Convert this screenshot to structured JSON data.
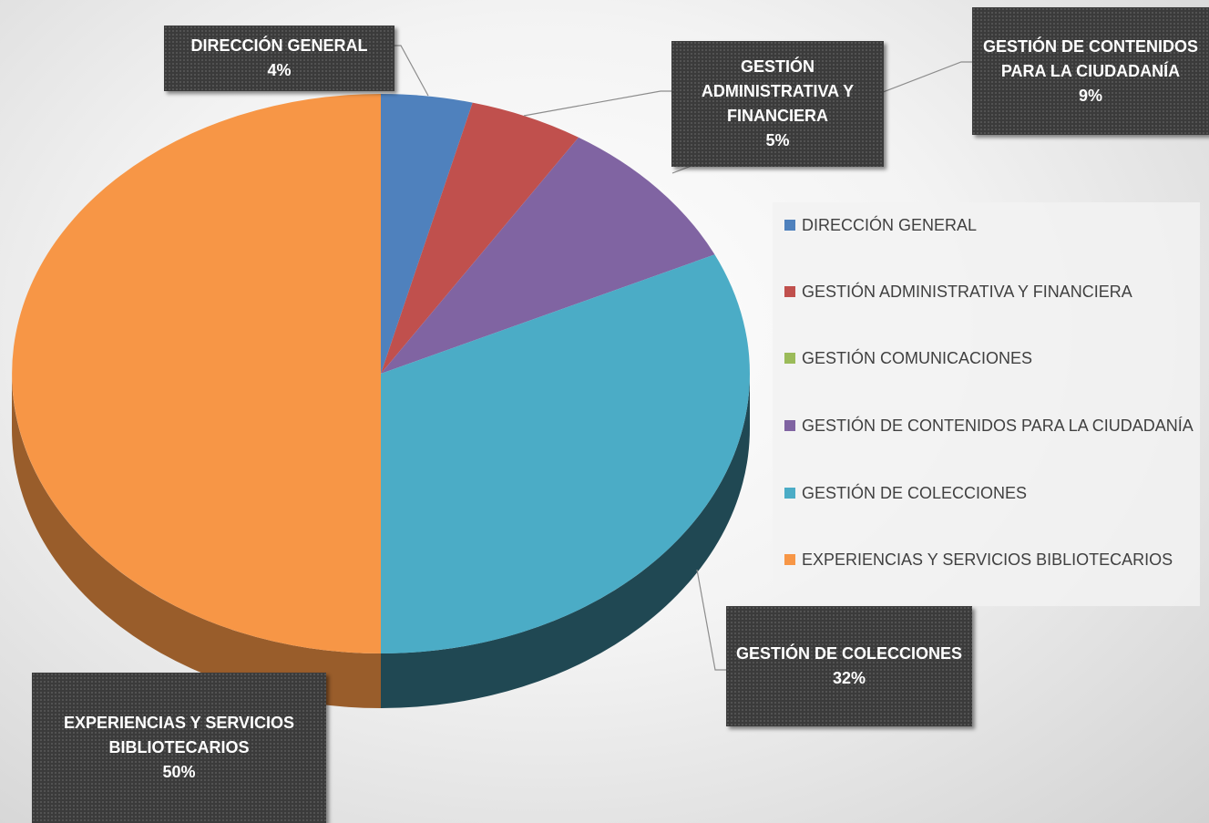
{
  "chart_data": {
    "type": "pie",
    "categories": [
      "DIRECCIÓN GENERAL",
      "GESTIÓN ADMINISTRATIVA Y FINANCIERA",
      "GESTIÓN COMUNICACIONES",
      "GESTIÓN DE CONTENIDOS PARA LA CIUDADANÍA",
      "GESTIÓN DE COLECCIONES",
      "EXPERIENCIAS Y SERVICIOS BIBLIOTECARIOS"
    ],
    "values": [
      4,
      5,
      0,
      9,
      32,
      50
    ],
    "value_labels": [
      "4%",
      "5%",
      null,
      "9%",
      "32%",
      "50%"
    ],
    "colors": [
      "#4f81bd",
      "#c0504d",
      "#9bbb59",
      "#8064a2",
      "#4bacc6",
      "#f79646"
    ],
    "legend": "right",
    "3d": true
  }
}
